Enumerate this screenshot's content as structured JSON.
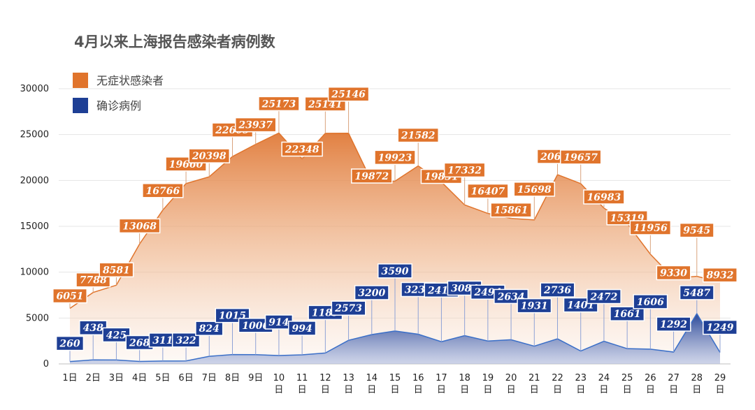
{
  "chart_data": {
    "type": "area",
    "title": "4月以来上海报告感染者病例数",
    "categories": [
      "1日",
      "2日",
      "3日",
      "4日",
      "5日",
      "6日",
      "7日",
      "8日",
      "9日",
      "10日",
      "11日",
      "12日",
      "13日",
      "14日",
      "15日",
      "16日",
      "17日",
      "18日",
      "19日",
      "20日",
      "21日",
      "22日",
      "23日",
      "24日",
      "25日",
      "26日",
      "27日",
      "28日",
      "29日"
    ],
    "ylim": [
      0,
      30000
    ],
    "yticks": [
      0,
      5000,
      10000,
      15000,
      20000,
      25000,
      30000
    ],
    "grid": true,
    "legend": "top-left",
    "series": [
      {
        "name": "无症状感染者",
        "color": "#e0742c",
        "values": [
          6051,
          7788,
          8581,
          13068,
          16766,
          19660,
          20398,
          22609,
          23937,
          25173,
          22348,
          25141,
          25146,
          19872,
          19923,
          21582,
          19831,
          17332,
          16407,
          15861,
          15698,
          20634,
          19657,
          16983,
          15319,
          11956,
          9330,
          9545,
          8932
        ]
      },
      {
        "name": "确诊病例",
        "color": "#1e3f95",
        "values": [
          260,
          438,
          425,
          268,
          311,
          322,
          824,
          1015,
          1006,
          914,
          994,
          1189,
          2573,
          3200,
          3590,
          3238,
          2417,
          3084,
          2494,
          2634,
          1931,
          2736,
          1401,
          2472,
          1661,
          1606,
          1292,
          5487,
          1249
        ]
      }
    ]
  }
}
